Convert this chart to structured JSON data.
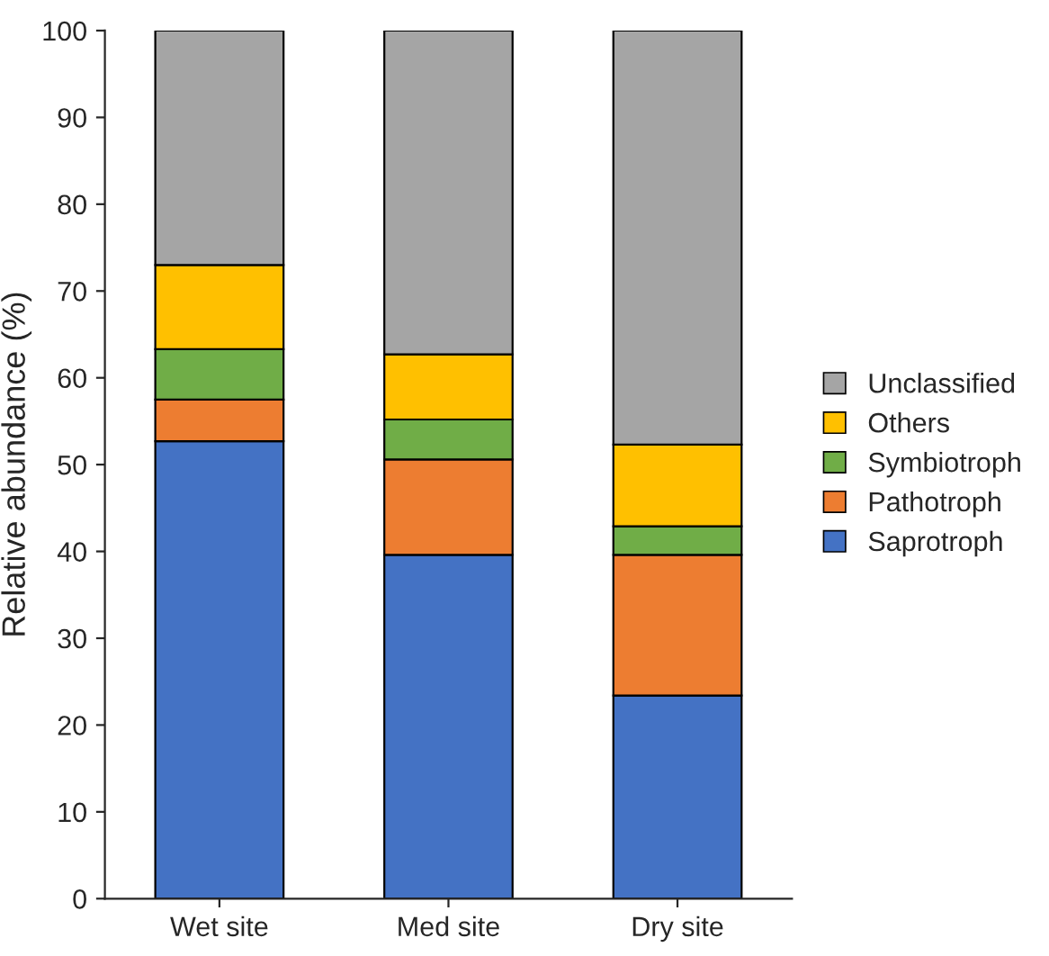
{
  "chart_data": {
    "type": "bar",
    "stacked": true,
    "ylabel": "Relative abundance (%)",
    "categories": [
      "Wet site",
      "Med site",
      "Dry site"
    ],
    "series": [
      {
        "name": "Saprotroph",
        "color": "#4472c4",
        "values": [
          52.7,
          39.6,
          23.4
        ]
      },
      {
        "name": "Pathotroph",
        "color": "#ed7d31",
        "values": [
          4.8,
          11.0,
          16.2
        ]
      },
      {
        "name": "Symbiotroph",
        "color": "#70ad47",
        "values": [
          5.8,
          4.6,
          3.3
        ]
      },
      {
        "name": "Others",
        "color": "#ffc000",
        "values": [
          9.7,
          7.5,
          9.4
        ]
      },
      {
        "name": "Unclassified",
        "color": "#a5a5a5",
        "values": [
          27.0,
          37.3,
          47.7
        ]
      }
    ],
    "ylim": [
      0,
      100
    ],
    "yticks": [
      0,
      10,
      20,
      30,
      40,
      50,
      60,
      70,
      80,
      90,
      100
    ],
    "grid": false,
    "legend": "right"
  }
}
